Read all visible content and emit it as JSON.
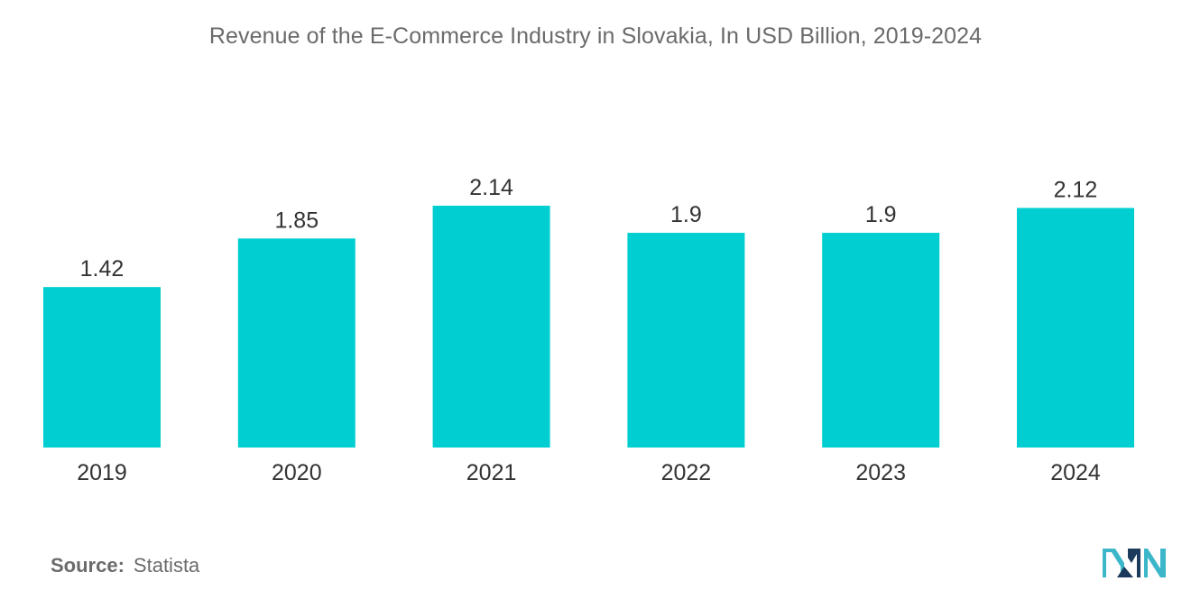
{
  "chart_data": {
    "type": "bar",
    "title": "Revenue of the E-Commerce Industry in Slovakia, In USD Billion, 2019-2024",
    "categories": [
      "2019",
      "2020",
      "2021",
      "2022",
      "2023",
      "2024"
    ],
    "values": [
      1.42,
      1.85,
      2.14,
      1.9,
      1.9,
      2.12
    ],
    "value_labels": [
      "1.42",
      "1.85",
      "2.14",
      "1.9",
      "1.9",
      "2.12"
    ],
    "xlabel": "",
    "ylabel": "",
    "ylim": [
      0,
      2.14
    ],
    "grid": false,
    "legend": "none",
    "bar_color": "#00CED1"
  },
  "source": {
    "label": "Source:",
    "value": "Statista"
  },
  "logo": {
    "icon": "mordor-intelligence-logo",
    "colors": [
      "#1b3a5c",
      "#3bb7c9"
    ]
  }
}
